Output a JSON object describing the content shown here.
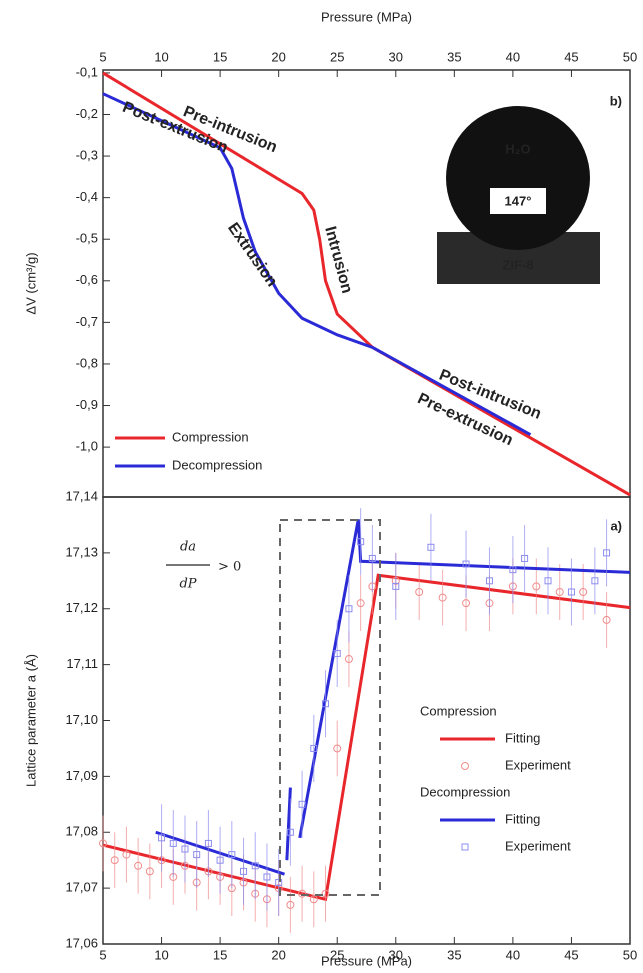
{
  "chart_data": [
    {
      "type": "line",
      "panel_label": "b)",
      "x_label": "Pressure (MPa)",
      "y_label": "ΔV (cm³/g)",
      "xlim": [
        5,
        50
      ],
      "xticks": [
        5,
        10,
        15,
        20,
        25,
        30,
        35,
        40,
        45,
        50
      ],
      "ylim": [
        -1.12,
        -0.093
      ],
      "yticks": [
        {
          "value": -0.1,
          "label": "-0,1"
        },
        {
          "value": -0.2,
          "label": "-0,2"
        },
        {
          "value": -0.3,
          "label": "-0,3"
        },
        {
          "value": -0.4,
          "label": "-0,4"
        },
        {
          "value": -0.5,
          "label": "-0,5"
        },
        {
          "value": -0.6,
          "label": "-0,6"
        },
        {
          "value": -0.7,
          "label": "-0,7"
        },
        {
          "value": -0.8,
          "label": "-0,8"
        },
        {
          "value": -0.9,
          "label": "-0,9"
        },
        {
          "value": -1.0,
          "label": "-1,0"
        }
      ],
      "series": [
        {
          "name": "Compression",
          "color": "#e8262b",
          "x": [
            5,
            22,
            23,
            23.5,
            24,
            25,
            26.5,
            28,
            50
          ],
          "values": [
            -0.1,
            -0.39,
            -0.43,
            -0.5,
            -0.6,
            -0.68,
            -0.72,
            -0.76,
            -1.115
          ]
        },
        {
          "name": "Decompression",
          "color": "#2a2ad6",
          "x": [
            5,
            15,
            16,
            17,
            18,
            20,
            22,
            25,
            28,
            41.5
          ],
          "values": [
            -0.15,
            -0.28,
            -0.33,
            -0.45,
            -0.53,
            -0.63,
            -0.69,
            -0.73,
            -0.76,
            -0.97
          ]
        }
      ],
      "annotations": [
        {
          "text": "Pre-intrusion",
          "color": "#e8262b"
        },
        {
          "text": "Intrusion",
          "color": "#e8262b"
        },
        {
          "text": "Post-intrusion",
          "color": "#e8262b"
        },
        {
          "text": "Post-extrusion",
          "color": "#2a2ad6"
        },
        {
          "text": "Extrusion",
          "color": "#2a2ad6"
        },
        {
          "text": "Pre-extrusion",
          "color": "#2a2ad6"
        }
      ],
      "inset": {
        "liquid": "H₂O",
        "angle": "147°",
        "material": "ZIF-8"
      }
    },
    {
      "type": "line",
      "panel_label": "a)",
      "x_label": "Pressure (MPa)",
      "y_label": "Lattice parameter a (Å)",
      "xlim": [
        5,
        50
      ],
      "xticks": [
        5,
        10,
        15,
        20,
        25,
        30,
        35,
        40,
        45,
        50
      ],
      "ylim": [
        17.06,
        17.14
      ],
      "yticks": [
        {
          "value": 17.06,
          "label": "17,06"
        },
        {
          "value": 17.07,
          "label": "17,07"
        },
        {
          "value": 17.08,
          "label": "17,08"
        },
        {
          "value": 17.09,
          "label": "17,09"
        },
        {
          "value": 17.1,
          "label": "17,10"
        },
        {
          "value": 17.11,
          "label": "17,11"
        },
        {
          "value": 17.12,
          "label": "17,12"
        },
        {
          "value": 17.13,
          "label": "17,13"
        },
        {
          "value": 17.14,
          "label": "17,14"
        }
      ],
      "annotation": {
        "numerator": "da",
        "denominator": "dP",
        "text": "> 0"
      },
      "series": [
        {
          "group": "Compression",
          "name": "Fitting",
          "style": "line",
          "color": "#e8262b",
          "x": [
            5,
            24,
            28.5,
            50
          ],
          "values": [
            17.0777,
            17.068,
            17.126,
            17.1202
          ]
        },
        {
          "group": "Compression",
          "name": "Experiment",
          "style": "markers",
          "marker": "circle",
          "color": "#f08c8c",
          "error": 0.005,
          "x": [
            5,
            6,
            7,
            8,
            9,
            10,
            11,
            12,
            13,
            14,
            15,
            16,
            17,
            18,
            19,
            20,
            21,
            22,
            23,
            24,
            25,
            26,
            27,
            28,
            30,
            32,
            34,
            36,
            38,
            40,
            42,
            44,
            46,
            48
          ],
          "values": [
            17.078,
            17.075,
            17.076,
            17.074,
            17.073,
            17.075,
            17.072,
            17.074,
            17.071,
            17.073,
            17.072,
            17.07,
            17.071,
            17.069,
            17.068,
            17.07,
            17.067,
            17.069,
            17.068,
            17.069,
            17.095,
            17.111,
            17.121,
            17.124,
            17.125,
            17.123,
            17.122,
            17.121,
            17.121,
            17.124,
            17.124,
            17.123,
            17.123,
            17.118
          ]
        },
        {
          "group": "Decompression",
          "name": "Fitting",
          "style": "line",
          "color": "#2a2ad6",
          "x": [
            9.5,
            20.5,
            20.6,
            20.7,
            21,
            21.4,
            21.8,
            26.8,
            27,
            50
          ],
          "values": [
            17.08,
            17.0725,
            null,
            17.075,
            17.088,
            null,
            17.079,
            17.136,
            17.1285,
            17.1265
          ]
        },
        {
          "group": "Decompression",
          "name": "Experiment",
          "style": "markers",
          "marker": "square",
          "color": "#8c8cf0",
          "error": 0.006,
          "x": [
            10,
            11,
            12,
            13,
            14,
            15,
            16,
            17,
            18,
            19,
            20,
            21,
            22,
            23,
            24,
            25,
            26,
            27,
            28,
            30,
            33,
            36,
            38,
            40,
            41,
            43,
            45,
            47,
            48
          ],
          "values": [
            17.079,
            17.078,
            17.077,
            17.076,
            17.078,
            17.075,
            17.076,
            17.073,
            17.074,
            17.072,
            17.071,
            17.08,
            17.085,
            17.095,
            17.103,
            17.112,
            17.12,
            17.132,
            17.129,
            17.124,
            17.131,
            17.128,
            17.125,
            17.127,
            17.129,
            17.125,
            17.123,
            17.125,
            17.13
          ]
        }
      ]
    }
  ]
}
